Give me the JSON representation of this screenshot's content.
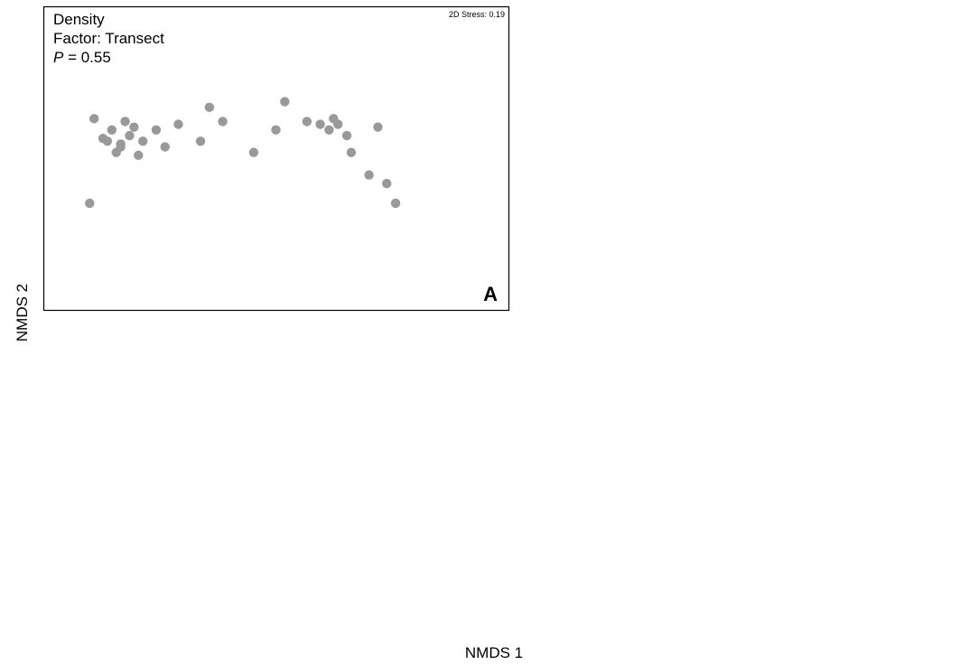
{
  "figure": {
    "xlabel": "NMDS 1",
    "ylabel": "NMDS 2"
  },
  "colors": {
    "black": "#000000",
    "grey": "#999999",
    "white": "#ffffff"
  },
  "chart_data": [
    {
      "id": "A",
      "type": "scatter",
      "title_lines": [
        "Density",
        "Factor: Transect"
      ],
      "p_label": "P",
      "p_value": "= 0.55",
      "stress_label": "2D Stress: 0.19",
      "panel_letter": "A",
      "series": [
        {
          "marker": "circle-grey",
          "x": [
            0.08,
            0.09,
            0.11,
            0.12,
            0.13,
            0.14,
            0.15,
            0.16,
            0.15,
            0.17,
            0.18,
            0.19,
            0.2,
            0.23,
            0.25,
            0.28,
            0.33,
            0.35,
            0.38,
            0.45,
            0.5,
            0.52,
            0.57,
            0.6,
            0.62,
            0.63,
            0.64,
            0.66,
            0.67,
            0.71,
            0.73,
            0.75,
            0.77
          ],
          "y": [
            0.34,
            0.64,
            0.57,
            0.56,
            0.6,
            0.52,
            0.55,
            0.63,
            0.54,
            0.58,
            0.61,
            0.51,
            0.56,
            0.6,
            0.54,
            0.62,
            0.56,
            0.68,
            0.63,
            0.52,
            0.6,
            0.7,
            0.63,
            0.62,
            0.6,
            0.64,
            0.62,
            0.58,
            0.52,
            0.44,
            0.61,
            0.41,
            0.34
          ],
          "yStars": []
        }
      ]
    }
  ]
}
